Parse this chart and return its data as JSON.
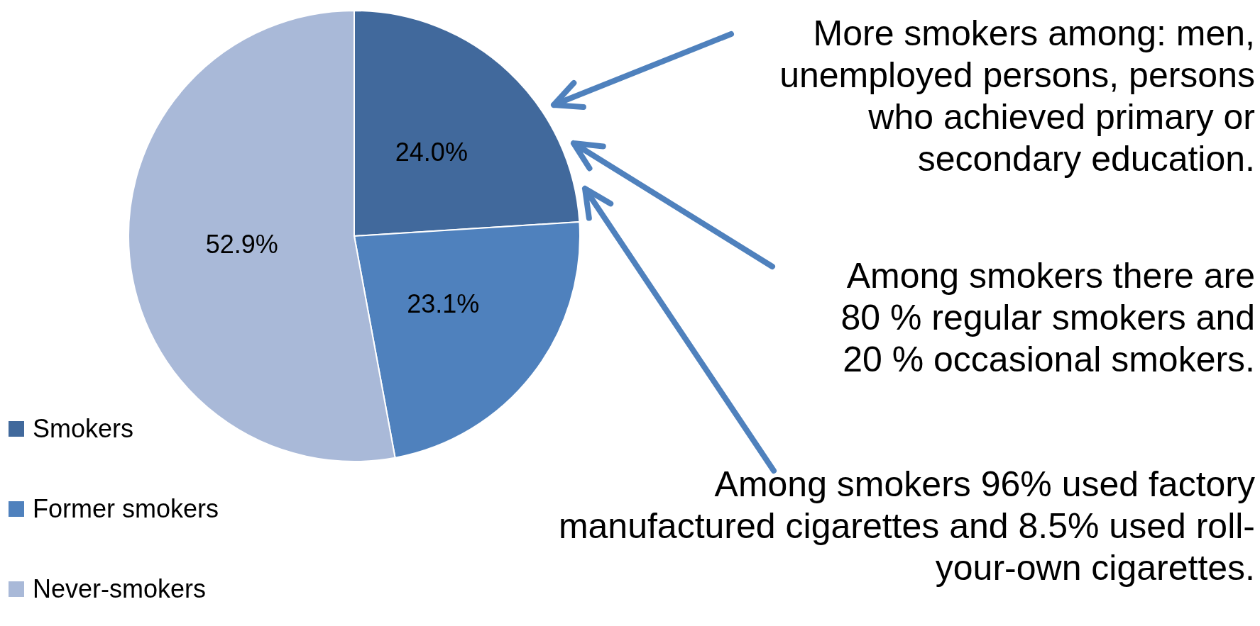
{
  "chart_data": {
    "type": "pie",
    "categories": [
      "Smokers",
      "Former smokers",
      "Never-smokers"
    ],
    "values": [
      24.0,
      23.1,
      52.9
    ],
    "colors": [
      "#41699c",
      "#4f81bd",
      "#a9b9d8"
    ],
    "value_labels": [
      "24.0%",
      "23.1%",
      "52.9%"
    ],
    "legend": "bottom left",
    "annotations": [
      "More smokers among: men, unemployed persons, persons who achieved primary or secondary education.",
      "Among smokers there are 80 % regular smokers and 20 % occasional smokers.",
      "Among smokers 96% used factory manufactured cigarettes and 8.5% used roll-your-own cigarettes."
    ]
  }
}
